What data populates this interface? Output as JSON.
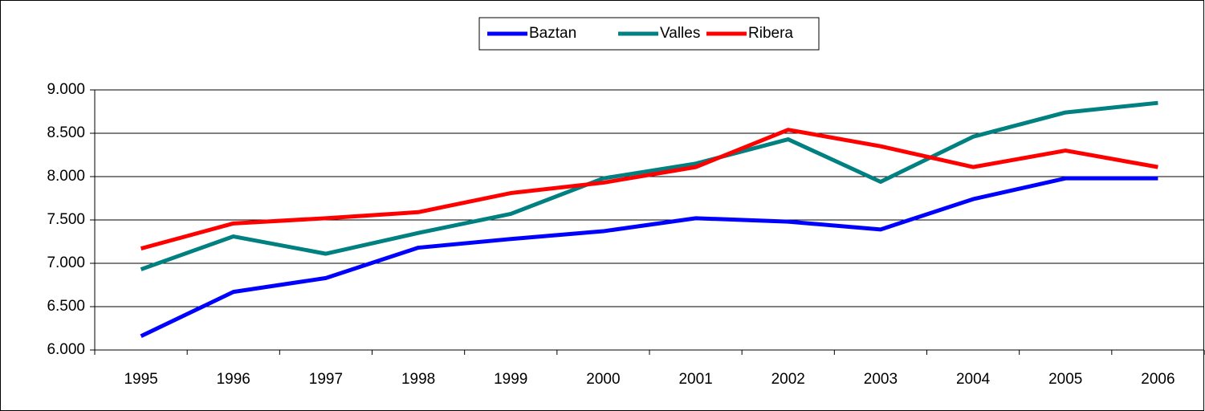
{
  "chart_data": {
    "type": "line",
    "categories": [
      "1995",
      "1996",
      "1997",
      "1998",
      "1999",
      "2000",
      "2001",
      "2002",
      "2003",
      "2004",
      "2005",
      "2006"
    ],
    "series": [
      {
        "name": "Baztan",
        "color": "#0000ff",
        "values": [
          6160,
          6670,
          6830,
          7180,
          7280,
          7370,
          7520,
          7480,
          7390,
          7740,
          7980,
          7980
        ]
      },
      {
        "name": "Valles",
        "color": "#008080",
        "values": [
          6930,
          7310,
          7110,
          7350,
          7570,
          7980,
          8150,
          8430,
          7940,
          8460,
          8740,
          8850
        ]
      },
      {
        "name": "Ribera",
        "color": "#ff0000",
        "values": [
          7170,
          7460,
          7520,
          7590,
          7810,
          7930,
          8110,
          8540,
          8350,
          8110,
          8300,
          8110
        ]
      }
    ],
    "ylim": [
      6000,
      9000
    ],
    "yticks": [
      {
        "value": 6000,
        "label": "6.000"
      },
      {
        "value": 6500,
        "label": "6.500"
      },
      {
        "value": 7000,
        "label": "7.000"
      },
      {
        "value": 7500,
        "label": "7.500"
      },
      {
        "value": 8000,
        "label": "8.000"
      },
      {
        "value": 8500,
        "label": "8.500"
      },
      {
        "value": 9000,
        "label": "9.000"
      }
    ],
    "grid": true,
    "legend": "top"
  }
}
